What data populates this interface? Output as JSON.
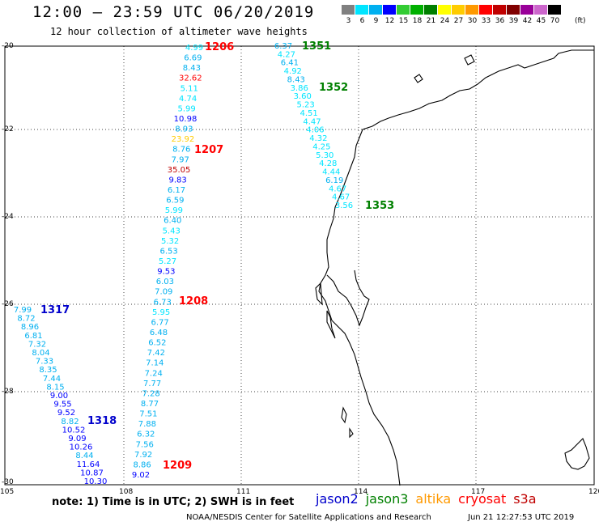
{
  "header": {
    "title": "12:00 – 23:59 UTC 06/20/2019",
    "subtitle": "12 hour collection of altimeter wave heights"
  },
  "legend": {
    "unit": "(ft)",
    "colors": [
      "#808080",
      "#00e5ff",
      "#00b0f0",
      "#0000ff",
      "#33cc33",
      "#00b000",
      "#008000",
      "#ffff00",
      "#ffcc00",
      "#ff9900",
      "#ff0000",
      "#c00000",
      "#800000",
      "#990099",
      "#cc66cc",
      "#000000"
    ],
    "labels": [
      "3",
      "6",
      "9",
      "12",
      "15",
      "18",
      "21",
      "24",
      "27",
      "30",
      "33",
      "36",
      "39",
      "42",
      "45",
      "70"
    ]
  },
  "axes": {
    "lat_labels": [
      "-20",
      "-22",
      "-24",
      "-26",
      "-28",
      "-30"
    ],
    "lon_labels": [
      "105",
      "108",
      "111",
      "114",
      "117",
      "120"
    ]
  },
  "tracks": [
    {
      "name": "altika-like-left",
      "pass_labels": [],
      "points": [
        {
          "v": "4.99",
          "c": "#00e5ff"
        },
        {
          "v": "6.69",
          "c": "#00b0f0"
        },
        {
          "v": "8.43",
          "c": "#00b0f0"
        },
        {
          "v": "32.62",
          "c": "#ff0000"
        },
        {
          "v": "5.11",
          "c": "#00e5ff"
        },
        {
          "v": "4.74",
          "c": "#00e5ff"
        },
        {
          "v": "5.99",
          "c": "#00e5ff"
        },
        {
          "v": "10.98",
          "c": "#0000ff"
        },
        {
          "v": "8.93",
          "c": "#00b0f0"
        },
        {
          "v": "23.92",
          "c": "#ffcc00"
        },
        {
          "v": "8.76",
          "c": "#00b0f0"
        },
        {
          "v": "7.97",
          "c": "#00b0f0"
        },
        {
          "v": "35.05",
          "c": "#c00000"
        },
        {
          "v": "9.83",
          "c": "#0000ff"
        },
        {
          "v": "6.17",
          "c": "#00b0f0"
        },
        {
          "v": "6.59",
          "c": "#00b0f0"
        },
        {
          "v": "5.99",
          "c": "#00e5ff"
        },
        {
          "v": "6.40",
          "c": "#00b0f0"
        },
        {
          "v": "5.43",
          "c": "#00e5ff"
        },
        {
          "v": "5.32",
          "c": "#00e5ff"
        },
        {
          "v": "6.53",
          "c": "#00b0f0"
        },
        {
          "v": "5.27",
          "c": "#00e5ff"
        },
        {
          "v": "9.53",
          "c": "#0000ff"
        },
        {
          "v": "6.03",
          "c": "#00b0f0"
        },
        {
          "v": "7.09",
          "c": "#00b0f0"
        },
        {
          "v": "6.73",
          "c": "#00b0f0"
        },
        {
          "v": "5.95",
          "c": "#00e5ff"
        },
        {
          "v": "6.77",
          "c": "#00b0f0"
        },
        {
          "v": "6.48",
          "c": "#00b0f0"
        },
        {
          "v": "6.52",
          "c": "#00b0f0"
        },
        {
          "v": "7.42",
          "c": "#00b0f0"
        },
        {
          "v": "7.14",
          "c": "#00b0f0"
        },
        {
          "v": "7.24",
          "c": "#00b0f0"
        },
        {
          "v": "7.77",
          "c": "#00b0f0"
        },
        {
          "v": "7.28",
          "c": "#00b0f0"
        },
        {
          "v": "8.77",
          "c": "#00b0f0"
        },
        {
          "v": "7.51",
          "c": "#00b0f0"
        },
        {
          "v": "7.88",
          "c": "#00b0f0"
        },
        {
          "v": "6.32",
          "c": "#00b0f0"
        },
        {
          "v": "7.56",
          "c": "#00b0f0"
        },
        {
          "v": "7.92",
          "c": "#00b0f0"
        },
        {
          "v": "8.86",
          "c": "#00b0f0"
        },
        {
          "v": "9.02",
          "c": "#0000ff"
        }
      ]
    },
    {
      "name": "jason3-coast",
      "points": [
        {
          "v": "6.37",
          "c": "#00b0f0"
        },
        {
          "v": "4.27",
          "c": "#00e5ff"
        },
        {
          "v": "6.41",
          "c": "#00b0f0"
        },
        {
          "v": "4.92",
          "c": "#00e5ff"
        },
        {
          "v": "8.43",
          "c": "#00b0f0"
        },
        {
          "v": "3.86",
          "c": "#00e5ff"
        },
        {
          "v": "3.60",
          "c": "#00e5ff"
        },
        {
          "v": "5.23",
          "c": "#00e5ff"
        },
        {
          "v": "4.51",
          "c": "#00e5ff"
        },
        {
          "v": "4.47",
          "c": "#00e5ff"
        },
        {
          "v": "4.06",
          "c": "#00e5ff"
        },
        {
          "v": "4.32",
          "c": "#00e5ff"
        },
        {
          "v": "4.25",
          "c": "#00e5ff"
        },
        {
          "v": "5.30",
          "c": "#00e5ff"
        },
        {
          "v": "4.28",
          "c": "#00e5ff"
        },
        {
          "v": "4.44",
          "c": "#00e5ff"
        },
        {
          "v": "6.19",
          "c": "#00b0f0"
        },
        {
          "v": "4.67",
          "c": "#00e5ff"
        },
        {
          "v": "4.67",
          "c": "#00e5ff"
        },
        {
          "v": "3.56",
          "c": "#00e5ff"
        }
      ]
    },
    {
      "name": "jason2-left",
      "points": [
        {
          "v": "7.99",
          "c": "#00b0f0"
        },
        {
          "v": "8.72",
          "c": "#00b0f0"
        },
        {
          "v": "8.96",
          "c": "#00b0f0"
        },
        {
          "v": "6.81",
          "c": "#00b0f0"
        },
        {
          "v": "7.32",
          "c": "#00b0f0"
        },
        {
          "v": "8.04",
          "c": "#00b0f0"
        },
        {
          "v": "7.33",
          "c": "#00b0f0"
        },
        {
          "v": "8.35",
          "c": "#00b0f0"
        },
        {
          "v": "7.44",
          "c": "#00b0f0"
        },
        {
          "v": "8.15",
          "c": "#00b0f0"
        },
        {
          "v": "9.00",
          "c": "#0000ff"
        },
        {
          "v": "9.55",
          "c": "#0000ff"
        },
        {
          "v": "9.52",
          "c": "#0000ff"
        },
        {
          "v": "8.82",
          "c": "#00b0f0"
        },
        {
          "v": "10.52",
          "c": "#0000ff"
        },
        {
          "v": "9.09",
          "c": "#0000ff"
        },
        {
          "v": "10.26",
          "c": "#0000ff"
        },
        {
          "v": "8.44",
          "c": "#00b0f0"
        },
        {
          "v": "11.64",
          "c": "#0000ff"
        },
        {
          "v": "10.87",
          "c": "#0000ff"
        },
        {
          "v": "10.30",
          "c": "#0000ff"
        }
      ]
    }
  ],
  "time_labels": [
    {
      "text": "1206",
      "c": "#ff0000"
    },
    {
      "text": "1207",
      "c": "#ff0000"
    },
    {
      "text": "1208",
      "c": "#ff0000"
    },
    {
      "text": "1209",
      "c": "#ff0000"
    },
    {
      "text": "1351",
      "c": "#008000"
    },
    {
      "text": "1352",
      "c": "#008000"
    },
    {
      "text": "1353",
      "c": "#008000"
    },
    {
      "text": "1317",
      "c": "#0000cc"
    },
    {
      "text": "1318",
      "c": "#0000cc"
    }
  ],
  "footer": {
    "note": "note: 1) Time is in UTC; 2) SWH is in feet",
    "satellites": [
      {
        "name": "jason2",
        "color": "#0000cc"
      },
      {
        "name": "jason3",
        "color": "#008000"
      },
      {
        "name": "altika",
        "color": "#ff9900"
      },
      {
        "name": "cryosat",
        "color": "#ff0000"
      },
      {
        "name": "s3a",
        "color": "#c00000"
      }
    ],
    "credit": "NOAA/NESDIS Center for Satellite Applications and Research",
    "timestamp": "Jun 21 12:27:53 UTC 2019"
  }
}
